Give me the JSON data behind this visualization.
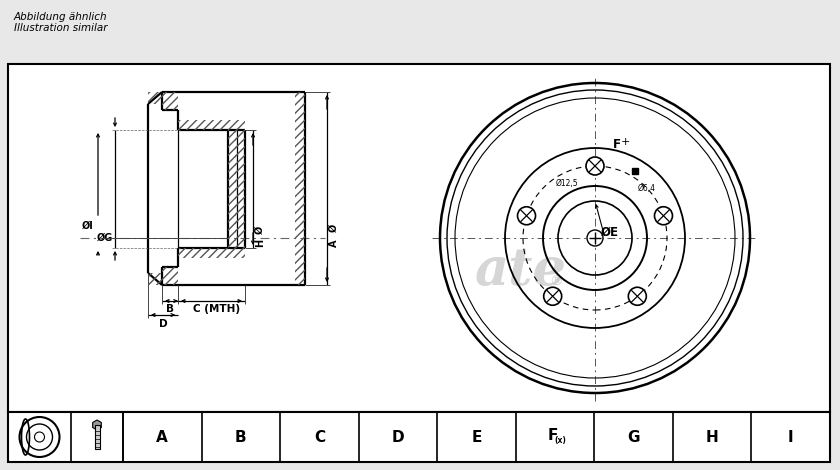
{
  "bg_color": "#e8e8e8",
  "drawing_bg": "#ffffff",
  "top_text_line1": "Abbildung ähnlich",
  "top_text_line2": "Illustration similar",
  "watermark": "ate",
  "table_headers": [
    "A",
    "B",
    "C",
    "D",
    "E",
    "F(x)",
    "G",
    "H",
    "I"
  ]
}
